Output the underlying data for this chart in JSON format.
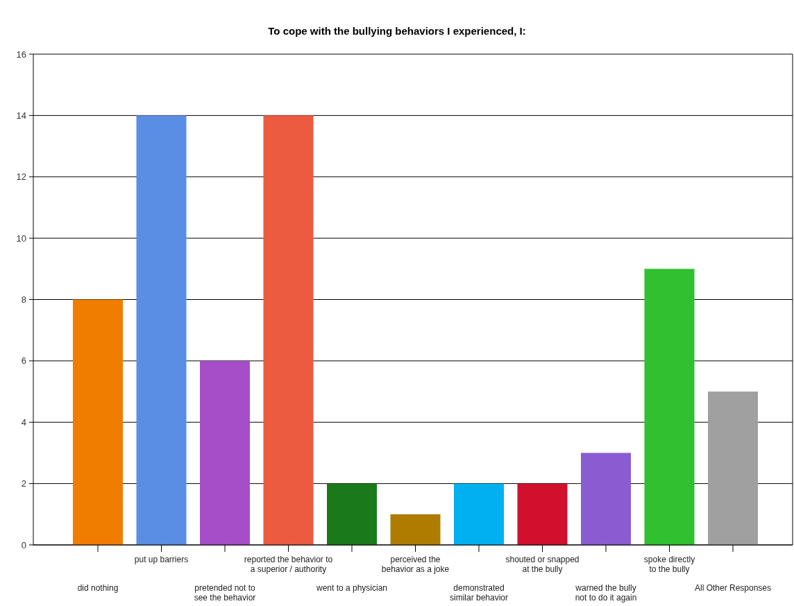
{
  "chart_data": {
    "type": "bar",
    "title": "To cope with the bullying behaviors I experienced, I:",
    "categories": [
      "did nothing",
      "put up barriers",
      "pretended not to\nsee the behavior",
      "reported the behavior to\na superior / authority",
      "went to a physician",
      "perceived the\nbehavior as a joke",
      "demonstrated\nsimilar behavior",
      "shouted or snapped\nat the bully",
      "warned the bully\nnot to do it again",
      "spoke directly\nto the bully",
      "All Other Responses"
    ],
    "values": [
      8,
      14,
      6,
      14,
      2,
      1,
      2,
      2,
      3,
      9,
      5
    ],
    "colors": [
      "#f07d00",
      "#5a8de4",
      "#a64ec8",
      "#ec5a40",
      "#1a7a1a",
      "#b07c00",
      "#00b0f0",
      "#d0102c",
      "#8a5cd2",
      "#30c030",
      "#a0a0a0"
    ],
    "ylim": [
      0,
      16
    ],
    "yticks": [
      0,
      2,
      4,
      6,
      8,
      10,
      12,
      14,
      16
    ],
    "grid": "y"
  }
}
